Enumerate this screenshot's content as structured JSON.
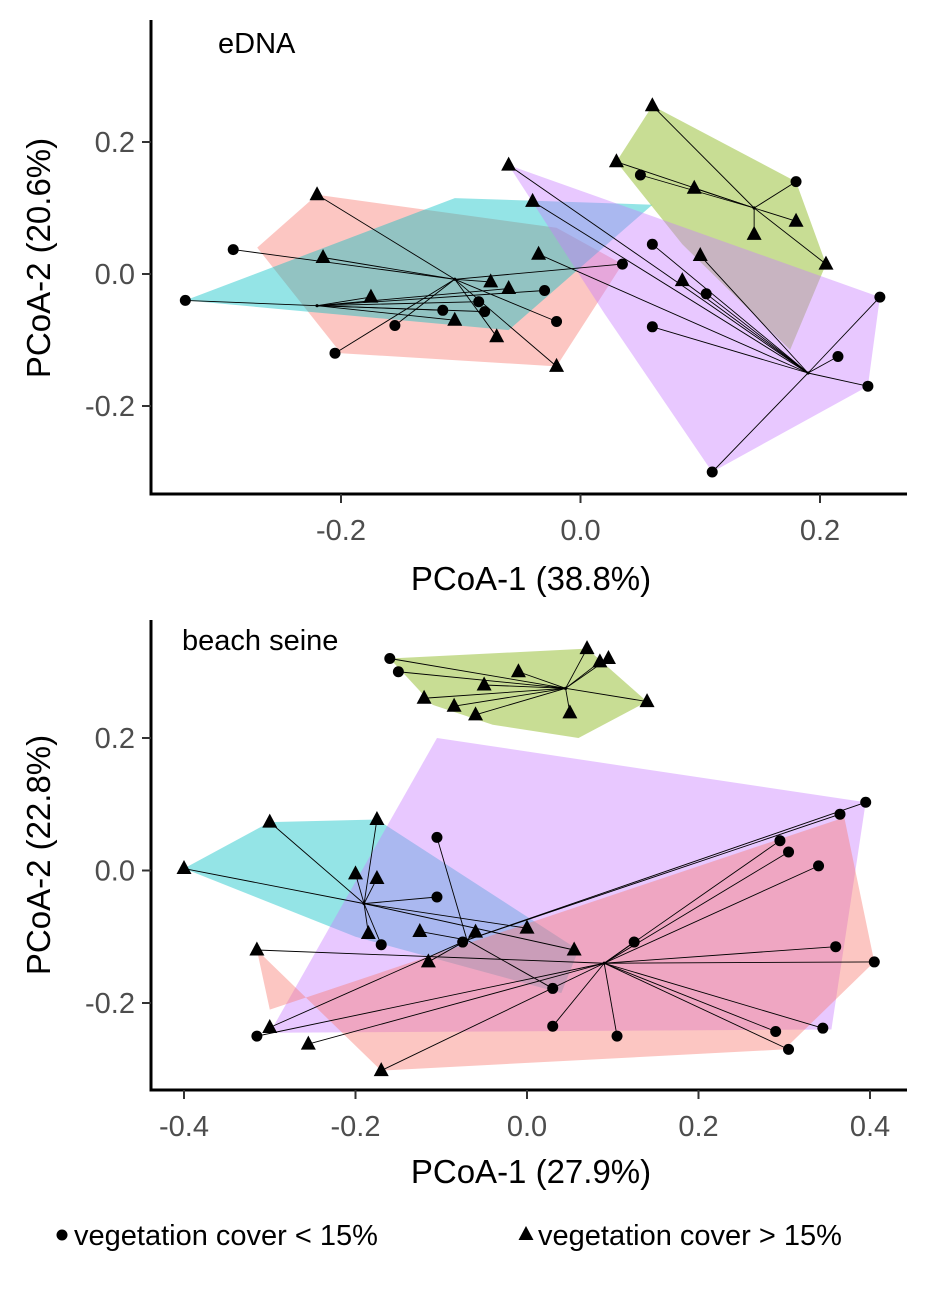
{
  "chart_data": [
    {
      "type": "scatter",
      "panel_label": "eDNA",
      "xlabel": "PCoA-1 (38.8%)",
      "ylabel": "PCoA-2 (20.6%)",
      "xlim": [
        -0.36,
        0.275
      ],
      "ylim": [
        -0.335,
        0.38
      ],
      "xticks": [
        -0.2,
        0.0,
        0.2
      ],
      "xtick_labels": [
        "-0.2",
        "0.0",
        "0.2"
      ],
      "yticks": [
        -0.2,
        0.0,
        0.2
      ],
      "ytick_labels": [
        "-0.2",
        "0.0",
        "0.2"
      ],
      "groups": [
        {
          "color": "#F8766D",
          "hull": [
            [
              -0.22,
              0.12
            ],
            [
              -0.02,
              0.07
            ],
            [
              0.035,
              0.015
            ],
            [
              -0.02,
              -0.14
            ],
            [
              -0.2,
              -0.12
            ],
            [
              -0.27,
              0.04
            ]
          ],
          "centroid": [
            -0.105,
            -0.008
          ],
          "points": [
            {
              "x": -0.29,
              "y": 0.037,
              "s": "circle"
            },
            {
              "x": -0.215,
              "y": 0.025,
              "s": "triangle"
            },
            {
              "x": -0.22,
              "y": 0.12,
              "s": "triangle"
            },
            {
              "x": -0.205,
              "y": -0.12,
              "s": "circle"
            },
            {
              "x": -0.155,
              "y": -0.078,
              "s": "circle"
            },
            {
              "x": -0.075,
              "y": -0.012,
              "s": "triangle"
            },
            {
              "x": 0.035,
              "y": 0.015,
              "s": "circle"
            },
            {
              "x": -0.02,
              "y": -0.072,
              "s": "circle"
            },
            {
              "x": -0.02,
              "y": -0.14,
              "s": "triangle"
            },
            {
              "x": -0.07,
              "y": -0.095,
              "s": "triangle"
            }
          ]
        },
        {
          "color": "#00BFC4",
          "hull": [
            [
              -0.33,
              -0.04
            ],
            [
              -0.105,
              0.115
            ],
            [
              0.06,
              0.105
            ],
            [
              -0.06,
              -0.085
            ]
          ],
          "centroid": [
            -0.22,
            -0.048
          ],
          "points": [
            {
              "x": -0.33,
              "y": -0.04,
              "s": "circle"
            },
            {
              "x": -0.175,
              "y": -0.035,
              "s": "triangle"
            },
            {
              "x": -0.115,
              "y": -0.055,
              "s": "circle"
            },
            {
              "x": -0.105,
              "y": -0.07,
              "s": "triangle"
            },
            {
              "x": -0.085,
              "y": -0.042,
              "s": "circle"
            },
            {
              "x": -0.08,
              "y": -0.057,
              "s": "circle"
            },
            {
              "x": -0.06,
              "y": -0.022,
              "s": "triangle"
            },
            {
              "x": -0.03,
              "y": -0.025,
              "s": "circle"
            }
          ]
        },
        {
          "color": "#7CAE00",
          "hull": [
            [
              0.06,
              0.255
            ],
            [
              0.18,
              0.14
            ],
            [
              0.205,
              0.015
            ],
            [
              0.175,
              -0.115
            ],
            [
              0.085,
              0.045
            ],
            [
              0.03,
              0.17
            ]
          ],
          "centroid": [
            0.145,
            0.1
          ],
          "points": [
            {
              "x": 0.06,
              "y": 0.255,
              "s": "triangle"
            },
            {
              "x": 0.03,
              "y": 0.17,
              "s": "triangle"
            },
            {
              "x": 0.05,
              "y": 0.15,
              "s": "circle"
            },
            {
              "x": 0.095,
              "y": 0.13,
              "s": "triangle"
            },
            {
              "x": 0.18,
              "y": 0.14,
              "s": "circle"
            },
            {
              "x": 0.18,
              "y": 0.08,
              "s": "triangle"
            },
            {
              "x": 0.145,
              "y": 0.06,
              "s": "triangle"
            },
            {
              "x": 0.205,
              "y": 0.015,
              "s": "triangle"
            }
          ]
        },
        {
          "color": "#C77CFF",
          "hull": [
            [
              -0.06,
              0.165
            ],
            [
              0.25,
              -0.035
            ],
            [
              0.24,
              -0.17
            ],
            [
              0.11,
              -0.3
            ],
            [
              0.02,
              -0.06
            ]
          ],
          "centroid": [
            0.19,
            -0.15
          ],
          "points": [
            {
              "x": -0.06,
              "y": 0.165,
              "s": "triangle"
            },
            {
              "x": -0.04,
              "y": 0.11,
              "s": "triangle"
            },
            {
              "x": -0.035,
              "y": 0.03,
              "s": "triangle"
            },
            {
              "x": 0.06,
              "y": 0.045,
              "s": "circle"
            },
            {
              "x": 0.1,
              "y": 0.028,
              "s": "triangle"
            },
            {
              "x": 0.085,
              "y": -0.01,
              "s": "triangle"
            },
            {
              "x": 0.105,
              "y": -0.03,
              "s": "circle"
            },
            {
              "x": 0.06,
              "y": -0.08,
              "s": "circle"
            },
            {
              "x": 0.25,
              "y": -0.035,
              "s": "circle"
            },
            {
              "x": 0.215,
              "y": -0.125,
              "s": "circle"
            },
            {
              "x": 0.24,
              "y": -0.17,
              "s": "circle"
            },
            {
              "x": 0.11,
              "y": -0.3,
              "s": "circle"
            }
          ]
        }
      ]
    },
    {
      "type": "scatter",
      "panel_label": "beach seine",
      "xlabel": "PCoA-1 (27.9%)",
      "ylabel": "PCoA-2 (22.8%)",
      "xlim": [
        -0.43,
        0.44
      ],
      "ylim": [
        -0.33,
        0.38
      ],
      "xticks": [
        -0.4,
        -0.2,
        0.0,
        0.2,
        0.4
      ],
      "xtick_labels": [
        "-0.4",
        "-0.2",
        "0.0",
        "0.2",
        "0.4"
      ],
      "yticks": [
        -0.2,
        0.0,
        0.2
      ],
      "ytick_labels": [
        "-0.2",
        "0.0",
        "0.2"
      ],
      "groups": [
        {
          "color": "#7CAE00",
          "hull": [
            [
              -0.16,
              0.32
            ],
            [
              0.07,
              0.335
            ],
            [
              0.14,
              0.255
            ],
            [
              0.06,
              0.2
            ],
            [
              -0.04,
              0.22
            ],
            [
              -0.11,
              0.25
            ]
          ],
          "centroid": [
            0.045,
            0.275
          ],
          "points": [
            {
              "x": -0.16,
              "y": 0.32,
              "s": "circle"
            },
            {
              "x": -0.15,
              "y": 0.3,
              "s": "circle"
            },
            {
              "x": -0.12,
              "y": 0.26,
              "s": "triangle"
            },
            {
              "x": -0.085,
              "y": 0.248,
              "s": "triangle"
            },
            {
              "x": -0.06,
              "y": 0.235,
              "s": "triangle"
            },
            {
              "x": -0.05,
              "y": 0.28,
              "s": "triangle"
            },
            {
              "x": -0.01,
              "y": 0.3,
              "s": "triangle"
            },
            {
              "x": 0.07,
              "y": 0.335,
              "s": "triangle"
            },
            {
              "x": 0.085,
              "y": 0.315,
              "s": "triangle"
            },
            {
              "x": 0.095,
              "y": 0.32,
              "s": "triangle"
            },
            {
              "x": 0.05,
              "y": 0.238,
              "s": "triangle"
            },
            {
              "x": 0.14,
              "y": 0.255,
              "s": "triangle"
            }
          ]
        },
        {
          "color": "#00BFC4",
          "hull": [
            [
              -0.4,
              0.003
            ],
            [
              -0.3,
              0.073
            ],
            [
              -0.175,
              0.077
            ],
            [
              0.06,
              -0.12
            ],
            [
              0.04,
              -0.185
            ],
            [
              -0.2,
              -0.1
            ]
          ],
          "centroid": [
            -0.19,
            -0.05
          ],
          "points": [
            {
              "x": -0.4,
              "y": 0.003,
              "s": "triangle"
            },
            {
              "x": -0.3,
              "y": 0.073,
              "s": "triangle"
            },
            {
              "x": -0.175,
              "y": 0.077,
              "s": "triangle"
            },
            {
              "x": -0.2,
              "y": -0.005,
              "s": "triangle"
            },
            {
              "x": -0.175,
              "y": -0.012,
              "s": "triangle"
            },
            {
              "x": -0.185,
              "y": -0.095,
              "s": "triangle"
            },
            {
              "x": -0.17,
              "y": -0.112,
              "s": "circle"
            },
            {
              "x": -0.105,
              "y": -0.04,
              "s": "circle"
            },
            {
              "x": 0.0,
              "y": -0.087,
              "s": "triangle"
            },
            {
              "x": 0.055,
              "y": -0.12,
              "s": "triangle"
            }
          ]
        },
        {
          "color": "#C77CFF",
          "hull": [
            [
              -0.105,
              0.2
            ],
            [
              0.395,
              0.103
            ],
            [
              0.355,
              -0.24
            ],
            [
              -0.3,
              -0.245
            ]
          ],
          "centroid": [
            -0.07,
            -0.105
          ],
          "points": [
            {
              "x": -0.105,
              "y": 0.05,
              "s": "circle"
            },
            {
              "x": -0.125,
              "y": -0.092,
              "s": "triangle"
            },
            {
              "x": -0.115,
              "y": -0.138,
              "s": "triangle"
            },
            {
              "x": -0.075,
              "y": -0.108,
              "s": "circle"
            },
            {
              "x": -0.06,
              "y": -0.093,
              "s": "triangle"
            },
            {
              "x": 0.03,
              "y": -0.178,
              "s": "circle"
            },
            {
              "x": 0.365,
              "y": 0.085,
              "s": "circle"
            },
            {
              "x": 0.395,
              "y": 0.103,
              "s": "circle"
            },
            {
              "x": -0.3,
              "y": -0.237,
              "s": "triangle"
            }
          ]
        },
        {
          "color": "#F8766D",
          "hull": [
            [
              -0.315,
              -0.12
            ],
            [
              -0.17,
              -0.302
            ],
            [
              0.3,
              -0.27
            ],
            [
              0.405,
              -0.138
            ],
            [
              0.37,
              0.08
            ],
            [
              -0.3,
              -0.21
            ]
          ],
          "centroid": [
            0.09,
            -0.14
          ],
          "points": [
            {
              "x": -0.315,
              "y": -0.12,
              "s": "triangle"
            },
            {
              "x": -0.315,
              "y": -0.25,
              "s": "circle"
            },
            {
              "x": -0.255,
              "y": -0.262,
              "s": "triangle"
            },
            {
              "x": -0.17,
              "y": -0.302,
              "s": "triangle"
            },
            {
              "x": 0.03,
              "y": -0.235,
              "s": "circle"
            },
            {
              "x": 0.105,
              "y": -0.25,
              "s": "circle"
            },
            {
              "x": 0.125,
              "y": -0.108,
              "s": "circle"
            },
            {
              "x": 0.295,
              "y": 0.045,
              "s": "circle"
            },
            {
              "x": 0.305,
              "y": 0.028,
              "s": "circle"
            },
            {
              "x": 0.34,
              "y": 0.007,
              "s": "circle"
            },
            {
              "x": 0.36,
              "y": -0.115,
              "s": "circle"
            },
            {
              "x": 0.405,
              "y": -0.138,
              "s": "circle"
            },
            {
              "x": 0.345,
              "y": -0.238,
              "s": "circle"
            },
            {
              "x": 0.29,
              "y": -0.243,
              "s": "circle"
            },
            {
              "x": 0.305,
              "y": -0.27,
              "s": "circle"
            }
          ]
        }
      ]
    }
  ],
  "legend": {
    "placement": "bottom",
    "items": [
      {
        "shape": "circle",
        "label": "vegetation cover < 15%"
      },
      {
        "shape": "triangle",
        "label": "vegetation cover > 15%"
      }
    ]
  }
}
